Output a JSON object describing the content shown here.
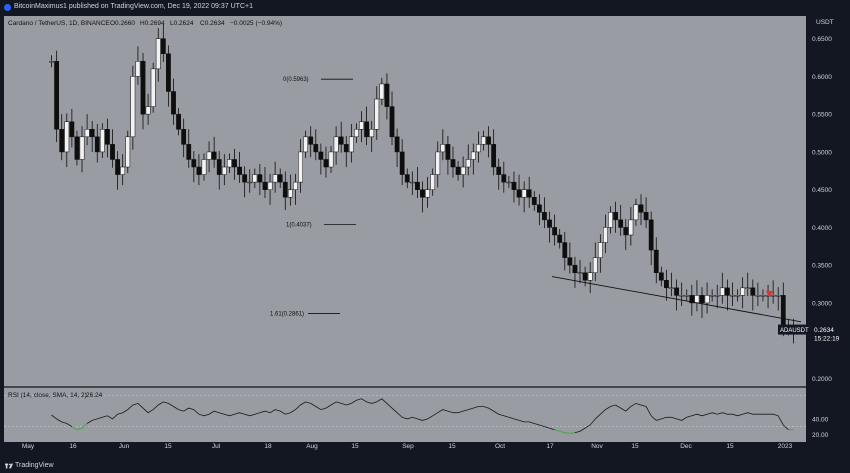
{
  "header": {
    "published_line": "BitcoinMaximus1 published on TradingView.com, Dec 19, 2022 09:37 UTC+1"
  },
  "footer": {
    "brand": "TradingView"
  },
  "colors": {
    "background": "#9a9ca4",
    "panel": "#131722",
    "candle": "#0e0e0e",
    "up_candle": "#f2f2f2",
    "fib_line": "#111111",
    "trend_line": "#111111",
    "rsi_line": "#1a1a1a",
    "rsi_oversold_highlight": "#4caf50",
    "red_marker": "#e5322d",
    "price_label_bg": "#131722"
  },
  "chart_data": [
    {
      "type": "candlestick",
      "title": "Cardano / TetherUS, 1D, BINANCE",
      "ohlc_readout": {
        "O": "0.2660",
        "H": "0.2694",
        "L": "0.2624",
        "C": "0.2634",
        "change": "−0.0025 (−0.94%)"
      },
      "symbol_label": "ADAUSDT",
      "last_price": "0.2634",
      "countdown": "15:22:19",
      "y_axis_title": "USDT",
      "y_ticks": [
        "0.6500",
        "0.6000",
        "0.5500",
        "0.5000",
        "0.4500",
        "0.4000",
        "0.3500",
        "0.3000",
        "0.2500",
        "0.2000"
      ],
      "ylim": [
        0.19,
        0.68
      ],
      "x_ticks": [
        "May",
        "16",
        "Jun",
        "15",
        "Jul",
        "18",
        "Aug",
        "15",
        "Sep",
        "15",
        "Oct",
        "17",
        "Nov",
        "15",
        "Dec",
        "15",
        "2023"
      ],
      "close_series": [
        0.62,
        0.53,
        0.5,
        0.54,
        0.52,
        0.49,
        0.52,
        0.53,
        0.52,
        0.5,
        0.53,
        0.51,
        0.49,
        0.47,
        0.48,
        0.52,
        0.6,
        0.62,
        0.55,
        0.56,
        0.61,
        0.65,
        0.63,
        0.58,
        0.55,
        0.53,
        0.51,
        0.49,
        0.48,
        0.47,
        0.49,
        0.5,
        0.49,
        0.47,
        0.48,
        0.49,
        0.48,
        0.47,
        0.46,
        0.46,
        0.47,
        0.46,
        0.45,
        0.46,
        0.47,
        0.46,
        0.44,
        0.45,
        0.46,
        0.5,
        0.52,
        0.51,
        0.5,
        0.49,
        0.48,
        0.5,
        0.52,
        0.51,
        0.5,
        0.52,
        0.53,
        0.54,
        0.52,
        0.53,
        0.57,
        0.59,
        0.56,
        0.52,
        0.5,
        0.47,
        0.46,
        0.46,
        0.45,
        0.44,
        0.45,
        0.47,
        0.5,
        0.51,
        0.49,
        0.48,
        0.47,
        0.48,
        0.49,
        0.5,
        0.51,
        0.52,
        0.51,
        0.48,
        0.47,
        0.46,
        0.46,
        0.45,
        0.44,
        0.45,
        0.44,
        0.43,
        0.42,
        0.41,
        0.4,
        0.39,
        0.38,
        0.36,
        0.35,
        0.34,
        0.34,
        0.33,
        0.34,
        0.36,
        0.38,
        0.4,
        0.42,
        0.41,
        0.4,
        0.39,
        0.41,
        0.43,
        0.42,
        0.41,
        0.37,
        0.34,
        0.33,
        0.32,
        0.32,
        0.31,
        0.31,
        0.31,
        0.3,
        0.31,
        0.3,
        0.31,
        0.31,
        0.31,
        0.32,
        0.31,
        0.31,
        0.31,
        0.32,
        0.32,
        0.31,
        0.31,
        0.31,
        0.31,
        0.31,
        0.31,
        0.27,
        0.265,
        0.2634
      ],
      "annotations": [
        {
          "text": "0(0.5963)",
          "price": 0.5963
        },
        {
          "text": "1(0.4037)",
          "price": 0.4037
        },
        {
          "text": "1.61(0.2861)",
          "price": 0.2861
        }
      ],
      "trendline": {
        "from": {
          "bar": 99,
          "price": 0.335
        },
        "to": {
          "bar": 148,
          "price": 0.275
        }
      }
    },
    {
      "type": "line",
      "title": "RSI (14, close, SMA, 14, 2)",
      "last_value": "26.24",
      "y_ticks": [
        "40.00",
        "20.00"
      ],
      "ylim": [
        10,
        80
      ],
      "bands": [
        70,
        30
      ],
      "series": [
        {
          "values": [
            45,
            40,
            36,
            34,
            30,
            26,
            28,
            34,
            38,
            40,
            42,
            44,
            40,
            46,
            48,
            52,
            58,
            60,
            54,
            48,
            52,
            58,
            62,
            60,
            56,
            52,
            50,
            54,
            52,
            46,
            44,
            46,
            50,
            48,
            46,
            44,
            46,
            48,
            46,
            44,
            46,
            48,
            50,
            48,
            52,
            50,
            46,
            48,
            52,
            58,
            62,
            60,
            56,
            52,
            54,
            58,
            62,
            60,
            58,
            60,
            64,
            66,
            62,
            60,
            62,
            66,
            60,
            54,
            48,
            42,
            40,
            42,
            40,
            38,
            40,
            44,
            48,
            52,
            50,
            48,
            48,
            50,
            52,
            54,
            56,
            56,
            54,
            50,
            46,
            44,
            42,
            40,
            38,
            36,
            36,
            34,
            32,
            30,
            28,
            26,
            24,
            22,
            21,
            22,
            24,
            28,
            32,
            40,
            46,
            52,
            56,
            58,
            54,
            50,
            56,
            60,
            58,
            56,
            44,
            38,
            40,
            42,
            42,
            40,
            38,
            42,
            44,
            46,
            44,
            46,
            48,
            46,
            48,
            46,
            46,
            44,
            46,
            48,
            46,
            46,
            46,
            46,
            46,
            44,
            32,
            26,
            26.24
          ]
        }
      ],
      "oversold_highlights": [
        [
          4,
          7
        ],
        [
          99,
          103
        ],
        [
          145,
          147
        ]
      ]
    }
  ]
}
